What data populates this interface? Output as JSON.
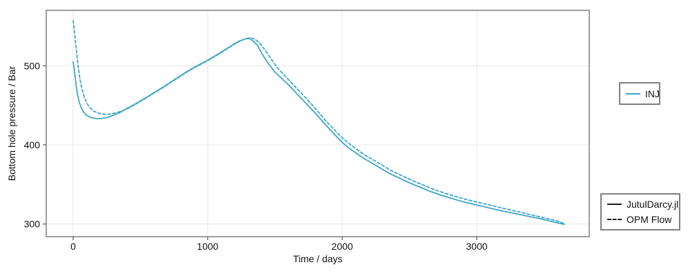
{
  "chart_data": {
    "type": "line",
    "title": "",
    "xlabel": "Time / days",
    "ylabel": "Bottom hole pressure / Bar",
    "xlim": [
      -200,
      3836
    ],
    "ylim": [
      284,
      570
    ],
    "xticks": [
      0,
      1000,
      2000,
      3000
    ],
    "yticks": [
      300,
      400,
      500
    ],
    "grid": true,
    "line_color": "#3aa6c8",
    "grid_color": "#e7e7e7",
    "frame_color": "#7f7f7f",
    "tick_color": "#555555",
    "text_color": "#111111",
    "legend_line_color": "#1a1a1a",
    "series": [
      {
        "name": "JutulDarcy.jl",
        "well": "INJ",
        "style": "solid",
        "color": "#3aa6c8",
        "points": [
          [
            0,
            505
          ],
          [
            8,
            496
          ],
          [
            18,
            481
          ],
          [
            30,
            466
          ],
          [
            45,
            454
          ],
          [
            60,
            447
          ],
          [
            80,
            441
          ],
          [
            100,
            437.5
          ],
          [
            125,
            435
          ],
          [
            150,
            433.8
          ],
          [
            180,
            433.2
          ],
          [
            210,
            433.3
          ],
          [
            250,
            434.5
          ],
          [
            300,
            437.5
          ],
          [
            350,
            441
          ],
          [
            400,
            446
          ],
          [
            450,
            450.5
          ],
          [
            500,
            455.5
          ],
          [
            550,
            460.5
          ],
          [
            600,
            466
          ],
          [
            650,
            471
          ],
          [
            700,
            476.5
          ],
          [
            750,
            482
          ],
          [
            800,
            487.5
          ],
          [
            850,
            493
          ],
          [
            900,
            498
          ],
          [
            950,
            502.5
          ],
          [
            1000,
            507
          ],
          [
            1050,
            512
          ],
          [
            1100,
            517
          ],
          [
            1150,
            522.5
          ],
          [
            1200,
            528
          ],
          [
            1240,
            531.5
          ],
          [
            1280,
            534
          ],
          [
            1310,
            534.5
          ],
          [
            1340,
            531
          ],
          [
            1370,
            526
          ],
          [
            1400,
            516
          ],
          [
            1450,
            503
          ],
          [
            1500,
            492
          ],
          [
            1550,
            484
          ],
          [
            1600,
            476
          ],
          [
            1650,
            467
          ],
          [
            1700,
            458
          ],
          [
            1750,
            449
          ],
          [
            1800,
            440
          ],
          [
            1850,
            430.5
          ],
          [
            1900,
            421
          ],
          [
            1950,
            412
          ],
          [
            2000,
            403
          ],
          [
            2050,
            396
          ],
          [
            2100,
            390
          ],
          [
            2150,
            384
          ],
          [
            2200,
            379
          ],
          [
            2250,
            374
          ],
          [
            2300,
            369
          ],
          [
            2350,
            364
          ],
          [
            2400,
            360
          ],
          [
            2450,
            356
          ],
          [
            2500,
            352
          ],
          [
            2550,
            348.5
          ],
          [
            2600,
            345
          ],
          [
            2650,
            341.5
          ],
          [
            2700,
            338.5
          ],
          [
            2750,
            335.5
          ],
          [
            2800,
            333
          ],
          [
            2850,
            330.5
          ],
          [
            2900,
            328
          ],
          [
            2950,
            326
          ],
          [
            3000,
            324
          ],
          [
            3050,
            322
          ],
          [
            3100,
            320
          ],
          [
            3150,
            318
          ],
          [
            3200,
            316
          ],
          [
            3250,
            314.5
          ],
          [
            3300,
            312.5
          ],
          [
            3350,
            311
          ],
          [
            3400,
            309
          ],
          [
            3450,
            307.5
          ],
          [
            3500,
            305.5
          ],
          [
            3550,
            303.5
          ],
          [
            3600,
            301.5
          ],
          [
            3650,
            299.5
          ]
        ]
      },
      {
        "name": "OPM Flow",
        "well": "INJ",
        "style": "dashed",
        "color": "#3aa6c8",
        "points": [
          [
            0,
            557
          ],
          [
            6,
            549
          ],
          [
            14,
            536
          ],
          [
            24,
            519
          ],
          [
            36,
            501
          ],
          [
            50,
            484
          ],
          [
            65,
            471
          ],
          [
            80,
            462
          ],
          [
            100,
            453
          ],
          [
            125,
            447
          ],
          [
            150,
            443
          ],
          [
            180,
            440.5
          ],
          [
            215,
            439
          ],
          [
            250,
            438.5
          ],
          [
            290,
            439.5
          ],
          [
            340,
            441.5
          ],
          [
            400,
            445.5
          ],
          [
            450,
            450
          ],
          [
            500,
            455
          ],
          [
            550,
            460
          ],
          [
            600,
            465.5
          ],
          [
            650,
            470.5
          ],
          [
            700,
            476
          ],
          [
            750,
            481.5
          ],
          [
            800,
            487
          ],
          [
            850,
            492.5
          ],
          [
            900,
            497.5
          ],
          [
            950,
            502
          ],
          [
            1000,
            506.5
          ],
          [
            1050,
            511.5
          ],
          [
            1100,
            516.5
          ],
          [
            1150,
            522
          ],
          [
            1200,
            527.5
          ],
          [
            1240,
            531
          ],
          [
            1280,
            534
          ],
          [
            1320,
            535.5
          ],
          [
            1355,
            533
          ],
          [
            1390,
            528
          ],
          [
            1430,
            519
          ],
          [
            1470,
            509
          ],
          [
            1520,
            497
          ],
          [
            1570,
            488
          ],
          [
            1620,
            479
          ],
          [
            1670,
            470
          ],
          [
            1720,
            461
          ],
          [
            1770,
            452
          ],
          [
            1820,
            442
          ],
          [
            1870,
            432
          ],
          [
            1920,
            423
          ],
          [
            1970,
            414
          ],
          [
            2020,
            406
          ],
          [
            2070,
            399
          ],
          [
            2120,
            393
          ],
          [
            2170,
            387
          ],
          [
            2220,
            382
          ],
          [
            2270,
            377
          ],
          [
            2320,
            372
          ],
          [
            2370,
            367
          ],
          [
            2420,
            363
          ],
          [
            2470,
            359
          ],
          [
            2520,
            355
          ],
          [
            2570,
            351.5
          ],
          [
            2620,
            348
          ],
          [
            2670,
            344.5
          ],
          [
            2720,
            341.5
          ],
          [
            2770,
            338.5
          ],
          [
            2820,
            336
          ],
          [
            2870,
            333.5
          ],
          [
            2920,
            331
          ],
          [
            2970,
            329
          ],
          [
            3020,
            327
          ],
          [
            3070,
            325
          ],
          [
            3120,
            323
          ],
          [
            3170,
            321
          ],
          [
            3220,
            319
          ],
          [
            3270,
            317
          ],
          [
            3320,
            315
          ],
          [
            3370,
            313
          ],
          [
            3420,
            311
          ],
          [
            3470,
            309
          ],
          [
            3520,
            307
          ],
          [
            3570,
            305
          ],
          [
            3620,
            302.5
          ],
          [
            3650,
            300.5
          ]
        ]
      }
    ],
    "legends": [
      {
        "entries": [
          {
            "label": "INJ",
            "color": "#3aa6c8",
            "style": "solid"
          }
        ]
      },
      {
        "entries": [
          {
            "label": "JutulDarcy.jl",
            "color": "#1a1a1a",
            "style": "solid"
          },
          {
            "label": "OPM Flow",
            "color": "#1a1a1a",
            "style": "dashed"
          }
        ]
      }
    ]
  }
}
